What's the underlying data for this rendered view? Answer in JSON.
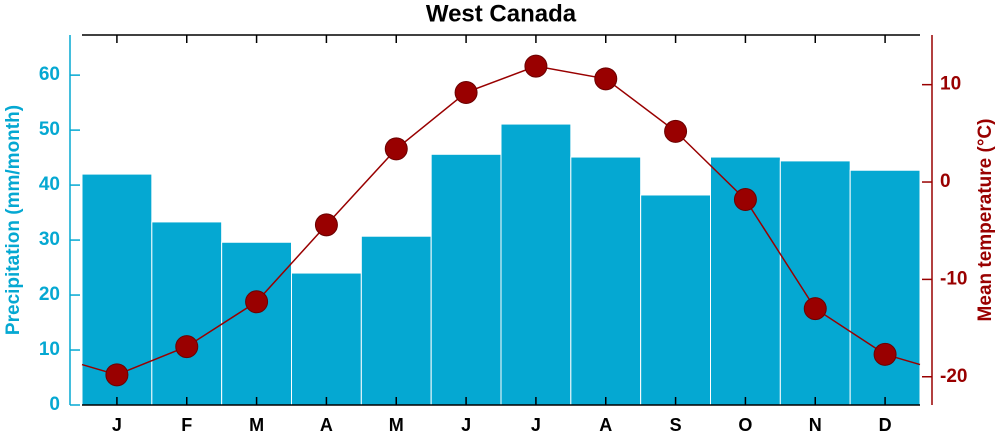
{
  "chart_data": {
    "type": "bar",
    "title": "West Canada",
    "categories": [
      "J",
      "F",
      "M",
      "A",
      "M",
      "J",
      "J",
      "A",
      "S",
      "O",
      "N",
      "D"
    ],
    "series": [
      {
        "name": "Precipitation",
        "type": "bar",
        "color": "#05a8d2",
        "values": [
          42,
          33.3,
          29.6,
          24,
          30.7,
          45.6,
          51.1,
          45.1,
          38.2,
          45.1,
          44.4,
          42.7
        ]
      },
      {
        "name": "Mean temperature",
        "type": "line",
        "axis": "y2",
        "color": "#990000",
        "values": [
          -19.8,
          -16.9,
          -12.3,
          -4.4,
          3.4,
          9.2,
          11.9,
          10.6,
          5.2,
          -1.8,
          -13.0,
          -17.7
        ]
      }
    ],
    "ylabel": "Precipitation (mm/month)",
    "y2label": "Mean temperature (°C)",
    "ylim": [
      0,
      67.3
    ],
    "yticks": [
      0,
      10,
      20,
      30,
      40,
      50,
      60
    ],
    "y2lim": [
      -22.9,
      15.1
    ],
    "y2ticks": [
      -20,
      -10,
      0,
      10
    ]
  }
}
